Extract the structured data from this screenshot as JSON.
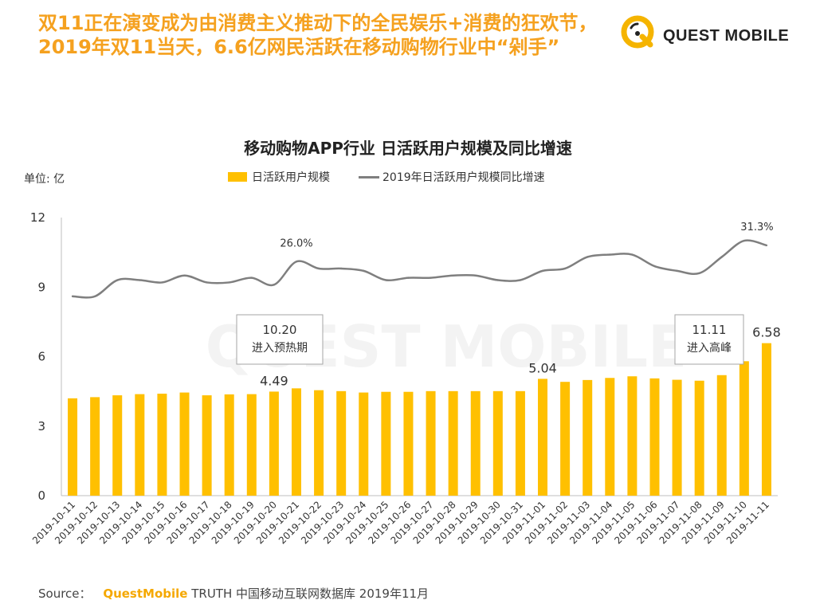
{
  "header": {
    "headline_line1": "双11正在演变成为由消费主义推动下的全民娱乐+消费的狂欢节，",
    "headline_line2": "2019年双11当天，6.6亿网民活跃在移动购物行业中“剁手”",
    "brand_name": "QUEST MOBILE"
  },
  "unit_label": "单位: 亿",
  "watermark": "QUEST MOBILE",
  "colors": {
    "bar": "#ffc000",
    "line": "#7f7f7f",
    "headline": "#f5a11f"
  },
  "callouts": [
    {
      "title": "10.20",
      "subtitle": "进入预热期"
    },
    {
      "title": "11.11",
      "subtitle": "进入高峰"
    }
  ],
  "source": {
    "prefix": "Source：",
    "brand": "QuestMobile",
    "text": "TRUTH 中国移动互联网数据库 2019年11月"
  },
  "chart_data": {
    "type": "bar",
    "title": "移动购物APP行业 日活跃用户规模及同比增速",
    "ylim": [
      0,
      12
    ],
    "yticks": [
      0,
      3,
      6,
      9,
      12
    ],
    "categories": [
      "2019-10-11",
      "2019-10-12",
      "2019-10-13",
      "2019-10-14",
      "2019-10-15",
      "2019-10-16",
      "2019-10-17",
      "2019-10-18",
      "2019-10-19",
      "2019-10-20",
      "2019-10-21",
      "2019-10-22",
      "2019-10-23",
      "2019-10-24",
      "2019-10-25",
      "2019-10-26",
      "2019-10-27",
      "2019-10-28",
      "2019-10-29",
      "2019-10-30",
      "2019-10-31",
      "2019-11-01",
      "2019-11-02",
      "2019-11-03",
      "2019-11-04",
      "2019-11-05",
      "2019-11-06",
      "2019-11-07",
      "2019-11-08",
      "2019-11-09",
      "2019-11-10",
      "2019-11-11"
    ],
    "series": [
      {
        "name": "日活跃用户规模",
        "type": "bar",
        "values": [
          4.2,
          4.25,
          4.33,
          4.38,
          4.4,
          4.45,
          4.33,
          4.37,
          4.38,
          4.49,
          4.63,
          4.55,
          4.51,
          4.45,
          4.48,
          4.48,
          4.51,
          4.51,
          4.51,
          4.51,
          4.51,
          5.04,
          4.91,
          4.99,
          5.08,
          5.15,
          5.06,
          5.0,
          4.96,
          5.2,
          5.8,
          6.58
        ],
        "labels": {
          "9": "4.49",
          "21": "5.04",
          "31": "6.58"
        }
      },
      {
        "name": "2019年日活跃用户规模同比增速",
        "type": "line",
        "values": [
          8.6,
          8.6,
          9.3,
          9.3,
          9.2,
          9.5,
          9.2,
          9.2,
          9.4,
          9.1,
          10.1,
          9.8,
          9.8,
          9.7,
          9.3,
          9.4,
          9.4,
          9.5,
          9.5,
          9.3,
          9.3,
          9.7,
          9.8,
          10.3,
          10.4,
          10.4,
          9.9,
          9.7,
          9.6,
          10.3,
          11.0,
          10.8
        ],
        "labels": {
          "10": "26.0%",
          "31": "31.3%"
        }
      }
    ],
    "grid": false,
    "legend_position": "top"
  }
}
